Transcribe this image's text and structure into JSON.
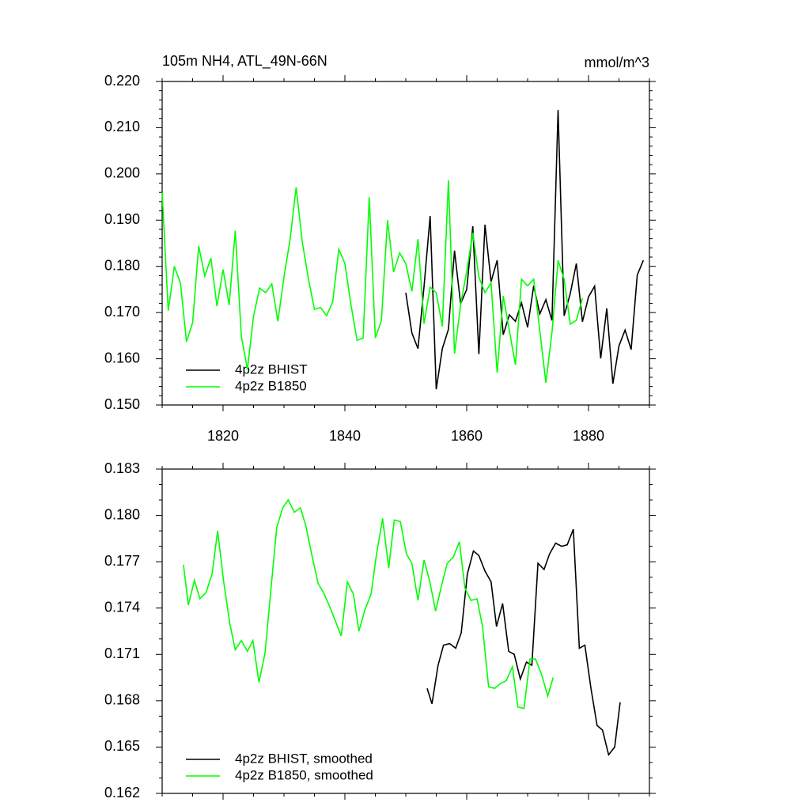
{
  "chart_data": [
    {
      "type": "line",
      "title": "105m NH4, ATL_49N-66N",
      "units": "mmol/m^3",
      "xlim": [
        1810,
        1890
      ],
      "xticks": [
        1820,
        1840,
        1860,
        1880
      ],
      "ylim": [
        0.15,
        0.22
      ],
      "yticks": [
        {
          "value": 0.15,
          "label": "0.150"
        },
        {
          "value": 0.16,
          "label": "0.160"
        },
        {
          "value": 0.17,
          "label": "0.170"
        },
        {
          "value": 0.18,
          "label": "0.180"
        },
        {
          "value": 0.19,
          "label": "0.190"
        },
        {
          "value": 0.2,
          "label": "0.200"
        },
        {
          "value": 0.21,
          "label": "0.210"
        },
        {
          "value": 0.22,
          "label": "0.220"
        }
      ],
      "series": [
        {
          "name": "4p2z BHIST",
          "color": "#000000",
          "x": [
            1850,
            1851,
            1852,
            1853,
            1854,
            1855,
            1856,
            1857,
            1858,
            1859,
            1860,
            1861,
            1862,
            1863,
            1864,
            1865,
            1866,
            1867,
            1868,
            1869,
            1870,
            1871,
            1872,
            1873,
            1874,
            1875,
            1876,
            1877,
            1878,
            1879,
            1880,
            1881,
            1882,
            1883,
            1884,
            1885,
            1886,
            1887,
            1888,
            1889
          ],
          "values": [
            0.1743,
            0.1656,
            0.1622,
            0.1757,
            0.1909,
            0.1534,
            0.1622,
            0.1664,
            0.1834,
            0.1719,
            0.175,
            0.1887,
            0.161,
            0.189,
            0.1767,
            0.1813,
            0.1652,
            0.1695,
            0.1681,
            0.1721,
            0.1668,
            0.1758,
            0.1697,
            0.1728,
            0.1683,
            0.2138,
            0.1693,
            0.1741,
            0.1806,
            0.168,
            0.1734,
            0.1757,
            0.1601,
            0.1709,
            0.1546,
            0.1628,
            0.1662,
            0.162,
            0.1781,
            0.1813
          ]
        },
        {
          "name": "4p2z B1850",
          "color": "#00ff00",
          "x": [
            1810,
            1811,
            1812,
            1813,
            1814,
            1815,
            1816,
            1817,
            1818,
            1819,
            1820,
            1821,
            1822,
            1823,
            1824,
            1825,
            1826,
            1827,
            1828,
            1829,
            1830,
            1831,
            1832,
            1833,
            1834,
            1835,
            1836,
            1837,
            1838,
            1839,
            1840,
            1841,
            1842,
            1843,
            1844,
            1845,
            1846,
            1847,
            1848,
            1849,
            1850,
            1851,
            1852,
            1853,
            1854,
            1855,
            1856,
            1857,
            1858,
            1859,
            1860,
            1861,
            1862,
            1863,
            1864,
            1865,
            1866,
            1867,
            1868,
            1869,
            1870,
            1871,
            1872,
            1873,
            1874,
            1875,
            1876,
            1877,
            1878,
            1879
          ],
          "values": [
            0.196,
            0.1704,
            0.18,
            0.1764,
            0.1637,
            0.1678,
            0.1844,
            0.1779,
            0.1818,
            0.1714,
            0.1793,
            0.1716,
            0.1877,
            0.1649,
            0.1577,
            0.1692,
            0.1753,
            0.1743,
            0.1762,
            0.1681,
            0.1777,
            0.1858,
            0.1971,
            0.1853,
            0.1774,
            0.1707,
            0.1711,
            0.1693,
            0.1723,
            0.1837,
            0.1806,
            0.1717,
            0.164,
            0.1645,
            0.195,
            0.1645,
            0.1683,
            0.19,
            0.1788,
            0.1829,
            0.1806,
            0.1746,
            0.1859,
            0.1676,
            0.1755,
            0.1743,
            0.167,
            0.1986,
            0.1611,
            0.1717,
            0.1789,
            0.1873,
            0.1777,
            0.1743,
            0.1764,
            0.157,
            0.1736,
            0.1661,
            0.1587,
            0.1772,
            0.1758,
            0.1772,
            0.1661,
            0.1548,
            0.1657,
            0.1813,
            0.1772,
            0.1675,
            0.1683,
            0.1731
          ]
        }
      ]
    },
    {
      "type": "line",
      "xlim": [
        1810,
        1890
      ],
      "xticks": [
        1820,
        1840,
        1860,
        1880
      ],
      "ylim": [
        0.162,
        0.183
      ],
      "yticks": [
        0.162,
        0.165,
        0.168,
        0.171,
        0.174,
        0.177,
        {
          "value": 0.18,
          "label": "0.180"
        },
        0.183
      ],
      "series": [
        {
          "name": "4p2z BHIST, smoothed",
          "color": "#000000",
          "x": [
            1853.5,
            1854.3,
            1855.3,
            1856.2,
            1857.2,
            1858.2,
            1859.1,
            1860.1,
            1861.1,
            1862,
            1863,
            1864,
            1864.9,
            1865.9,
            1866.9,
            1867.8,
            1868.8,
            1869.8,
            1870.7,
            1871.7,
            1872.7,
            1873.6,
            1874.6,
            1875.6,
            1876.5,
            1877.5,
            1878.5,
            1879.4,
            1880.4,
            1881.4,
            1882.3,
            1883.3,
            1884.3,
            1885.2
          ],
          "values": [
            0.1688,
            0.1678,
            0.1703,
            0.1716,
            0.1717,
            0.1714,
            0.1724,
            0.1762,
            0.1777,
            0.1774,
            0.1764,
            0.1757,
            0.1728,
            0.1743,
            0.1712,
            0.171,
            0.1694,
            0.1705,
            0.1703,
            0.1769,
            0.1765,
            0.1775,
            0.1782,
            0.178,
            0.1781,
            0.1791,
            0.1714,
            0.1716,
            0.1688,
            0.1664,
            0.1661,
            0.1645,
            0.165,
            0.1679
          ]
        },
        {
          "name": "4p2z B1850, smoothed",
          "color": "#00ff00",
          "x": [
            1813.5,
            1814.3,
            1815.3,
            1816.2,
            1817.2,
            1818.2,
            1819.1,
            1820.1,
            1821.1,
            1822,
            1823,
            1824,
            1824.9,
            1825.9,
            1826.9,
            1827.8,
            1828.8,
            1829.8,
            1830.7,
            1831.7,
            1832.7,
            1833.6,
            1834.6,
            1835.6,
            1836.5,
            1837.5,
            1838.5,
            1839.4,
            1840.4,
            1841.4,
            1842.3,
            1843.3,
            1844.3,
            1845.2,
            1846.2,
            1847.2,
            1848.1,
            1849.1,
            1850.1,
            1851,
            1852,
            1853,
            1853.9,
            1854.9,
            1855.9,
            1856.8,
            1857.8,
            1858.8,
            1859.7,
            1860.7,
            1861.7,
            1862.6,
            1863.6,
            1864.6,
            1865.5,
            1866.5,
            1867.5,
            1868.4,
            1869.4,
            1870.4,
            1871.3,
            1872.3,
            1873.3,
            1874.2
          ],
          "values": [
            0.1768,
            0.1742,
            0.1758,
            0.1746,
            0.175,
            0.1762,
            0.179,
            0.1757,
            0.173,
            0.1713,
            0.1719,
            0.1712,
            0.1719,
            0.1692,
            0.1711,
            0.175,
            0.1792,
            0.1805,
            0.181,
            0.1802,
            0.1805,
            0.1793,
            0.1774,
            0.1756,
            0.175,
            0.1741,
            0.1731,
            0.1722,
            0.1757,
            0.1749,
            0.1725,
            0.1739,
            0.1749,
            0.1775,
            0.1798,
            0.1766,
            0.1797,
            0.1796,
            0.1775,
            0.1769,
            0.1745,
            0.1771,
            0.1758,
            0.1738,
            0.1755,
            0.1769,
            0.1773,
            0.1783,
            0.1753,
            0.1745,
            0.1746,
            0.1728,
            0.1689,
            0.1688,
            0.1691,
            0.1693,
            0.1702,
            0.1676,
            0.1675,
            0.1707,
            0.1707,
            0.1697,
            0.1683,
            0.1695
          ]
        }
      ]
    }
  ]
}
